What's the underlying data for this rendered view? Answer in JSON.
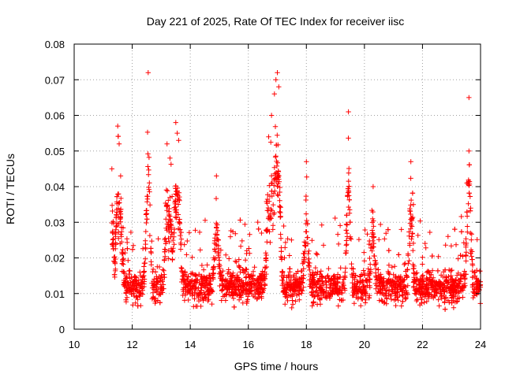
{
  "chart_data": {
    "type": "scatter",
    "title": "Day 221 of 2025, Rate Of TEC Index for receiver iisc",
    "xlabel": "GPS time / hours",
    "ylabel": "ROTI / TECUs",
    "xlim": [
      10,
      24
    ],
    "ylim": [
      0,
      0.08
    ],
    "grid": true,
    "marker": "plus",
    "color": "#ff0000",
    "xticks": [
      "10",
      "12",
      "14",
      "16",
      "18",
      "20",
      "22",
      "24"
    ],
    "xtick_values": [
      10,
      12,
      14,
      16,
      18,
      20,
      22,
      24
    ],
    "yticks": [
      "0",
      "0.01",
      "0.02",
      "0.03",
      "0.04",
      "0.05",
      "0.06",
      "0.07",
      "0.08"
    ],
    "ytick_values": [
      0,
      0.01,
      0.02,
      0.03,
      0.04,
      0.05,
      0.06,
      0.07,
      0.08
    ],
    "notable_points": [
      {
        "x": 11.3,
        "y": 0.045
      },
      {
        "x": 11.5,
        "y": 0.057
      },
      {
        "x": 11.55,
        "y": 0.052
      },
      {
        "x": 11.6,
        "y": 0.043
      },
      {
        "x": 12.55,
        "y": 0.072
      },
      {
        "x": 13.2,
        "y": 0.052
      },
      {
        "x": 13.3,
        "y": 0.048
      },
      {
        "x": 13.5,
        "y": 0.058
      },
      {
        "x": 13.55,
        "y": 0.055
      },
      {
        "x": 13.6,
        "y": 0.053
      },
      {
        "x": 14.9,
        "y": 0.043
      },
      {
        "x": 16.7,
        "y": 0.054
      },
      {
        "x": 16.8,
        "y": 0.06
      },
      {
        "x": 16.9,
        "y": 0.066
      },
      {
        "x": 16.95,
        "y": 0.07
      },
      {
        "x": 17.0,
        "y": 0.072
      },
      {
        "x": 17.05,
        "y": 0.068
      },
      {
        "x": 18.0,
        "y": 0.047
      },
      {
        "x": 19.45,
        "y": 0.061
      },
      {
        "x": 20.3,
        "y": 0.04
      },
      {
        "x": 21.6,
        "y": 0.047
      },
      {
        "x": 23.6,
        "y": 0.065
      },
      {
        "x": 23.6,
        "y": 0.05
      }
    ],
    "base_level": 0.012,
    "series_start_hour": 11.3,
    "series_end_hour": 24.0
  }
}
